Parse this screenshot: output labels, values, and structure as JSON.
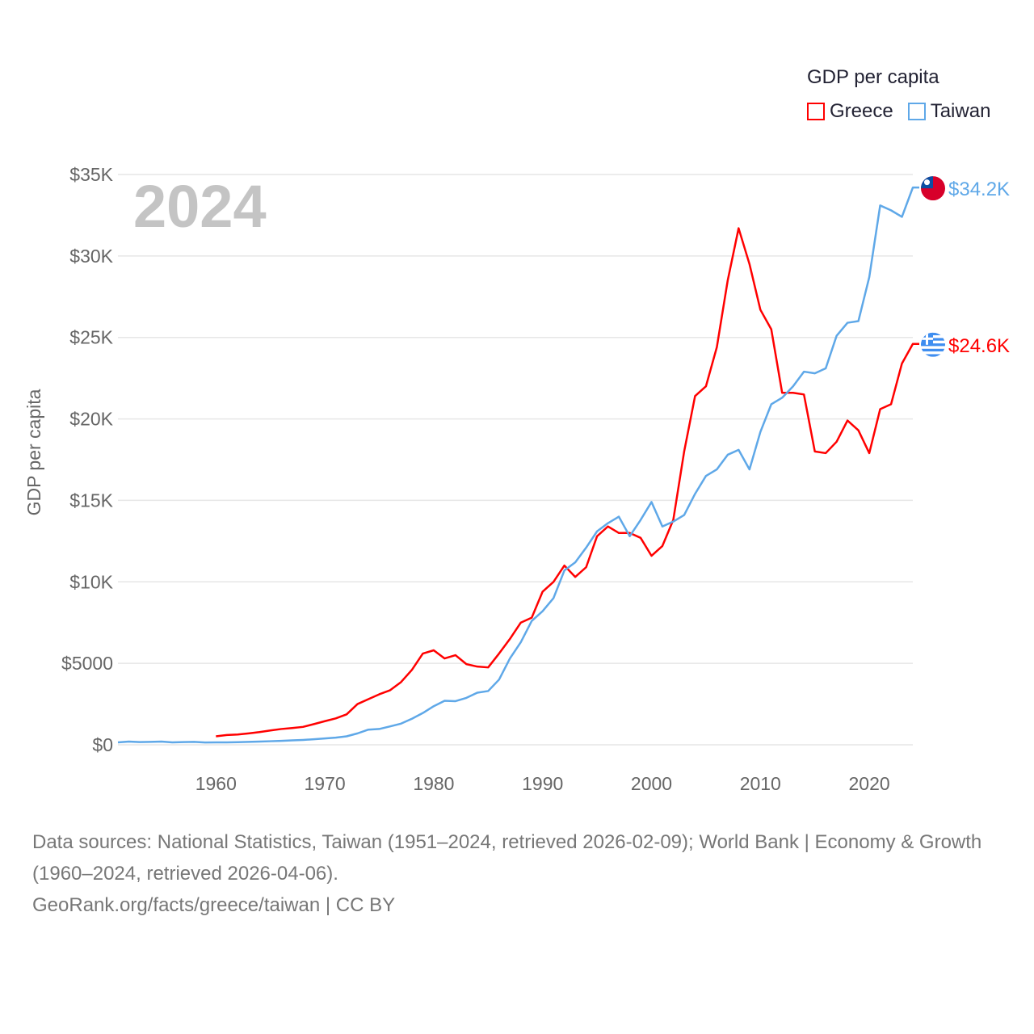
{
  "chart_data": {
    "type": "line",
    "year_label": "2024",
    "ylabel": "GDP per capita",
    "xlabel": "",
    "ylim": [
      0,
      35000
    ],
    "xlim": [
      1951,
      2024
    ],
    "yticks": [
      {
        "v": 0,
        "label": "$0"
      },
      {
        "v": 5000,
        "label": "$5000"
      },
      {
        "v": 10000,
        "label": "$10K"
      },
      {
        "v": 15000,
        "label": "$15K"
      },
      {
        "v": 20000,
        "label": "$20K"
      },
      {
        "v": 25000,
        "label": "$25K"
      },
      {
        "v": 30000,
        "label": "$30K"
      },
      {
        "v": 35000,
        "label": "$35K"
      }
    ],
    "xticks": [
      1960,
      1970,
      1980,
      1990,
      2000,
      2010,
      2020
    ],
    "grid": true,
    "legend": {
      "title": "GDP per capita",
      "placement": "top-right"
    },
    "series": [
      {
        "name": "Greece",
        "color": "#ff0000",
        "end_label": "$24.6K",
        "flag": "greece-flag",
        "start": 1960,
        "values_k": [
          0.52,
          0.6,
          0.63,
          0.7,
          0.78,
          0.88,
          0.97,
          1.03,
          1.1,
          1.27,
          1.45,
          1.62,
          1.87,
          2.5,
          2.8,
          3.1,
          3.35,
          3.85,
          4.6,
          5.6,
          5.8,
          5.3,
          5.5,
          4.95,
          4.8,
          4.75,
          5.6,
          6.5,
          7.5,
          7.8,
          9.4,
          10.0,
          11.0,
          10.3,
          10.9,
          12.8,
          13.4,
          13.0,
          13.0,
          12.7,
          11.6,
          12.2,
          13.8,
          18.0,
          21.4,
          22.0,
          24.4,
          28.5,
          31.7,
          29.5,
          26.7,
          25.5,
          21.6,
          21.6,
          21.5,
          18.0,
          17.9,
          18.6,
          19.9,
          19.3,
          17.9,
          20.6,
          20.9,
          23.4,
          24.6
        ]
      },
      {
        "name": "Taiwan",
        "color": "#5fa8e8",
        "end_label": "$34.2K",
        "flag": "taiwan-flag",
        "start": 1951,
        "values_k": [
          0.15,
          0.2,
          0.17,
          0.18,
          0.2,
          0.15,
          0.17,
          0.18,
          0.14,
          0.15,
          0.15,
          0.16,
          0.18,
          0.2,
          0.22,
          0.24,
          0.27,
          0.3,
          0.34,
          0.39,
          0.44,
          0.52,
          0.7,
          0.93,
          0.97,
          1.13,
          1.3,
          1.6,
          1.95,
          2.37,
          2.7,
          2.68,
          2.88,
          3.2,
          3.3,
          4.0,
          5.3,
          6.3,
          7.6,
          8.2,
          9.0,
          10.7,
          11.2,
          12.1,
          13.1,
          13.6,
          14.0,
          12.8,
          13.8,
          14.9,
          13.4,
          13.7,
          14.1,
          15.4,
          16.5,
          16.9,
          17.8,
          18.1,
          16.9,
          19.2,
          20.9,
          21.3,
          22.0,
          22.9,
          22.8,
          23.1,
          25.1,
          25.9,
          26.0,
          28.7,
          33.1,
          32.8,
          32.4,
          34.2
        ]
      }
    ]
  },
  "footer": {
    "sources": "Data sources: National Statistics, Taiwan (1951–2024, retrieved 2026-02-09); World Bank | Economy & Growth (1960–2024, retrieved 2026-04-06).",
    "link": "GeoRank.org/facts/greece/taiwan | CC BY"
  }
}
